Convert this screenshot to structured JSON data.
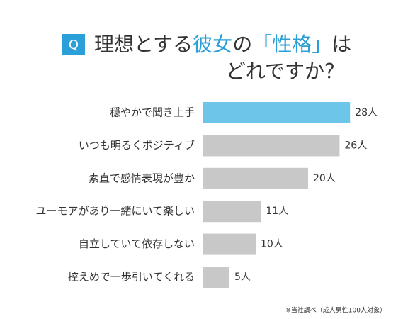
{
  "chart_data": {
    "type": "bar",
    "orientation": "horizontal",
    "badge": "Q",
    "title_parts": [
      {
        "text": "理想とする",
        "color": "#333333"
      },
      {
        "text": "彼女",
        "color": "#2a9fd8"
      },
      {
        "text": "の",
        "color": "#333333"
      },
      {
        "text": "「性格」",
        "color": "#2a9fd8"
      },
      {
        "text": "は",
        "color": "#333333"
      }
    ],
    "title_line2": "どれですか？",
    "categories": [
      "穏やかで聞き上手",
      "いつも明るくポジティブ",
      "素直で感情表現が豊か",
      "ユーモアがあり一緒にいて楽しい",
      "自立していて依存しない",
      "控えめで一歩引いてくれる"
    ],
    "values": [
      28,
      26,
      20,
      11,
      10,
      5
    ],
    "value_labels": [
      "28人",
      "26人",
      "20人",
      "11人",
      "10人",
      "5人"
    ],
    "colors": [
      "#6dc6ea",
      "#c8c8c8",
      "#c8c8c8",
      "#c8c8c8",
      "#c8c8c8",
      "#c8c8c8"
    ],
    "footnote": "※当社調べ（成人男性100人対象）"
  }
}
